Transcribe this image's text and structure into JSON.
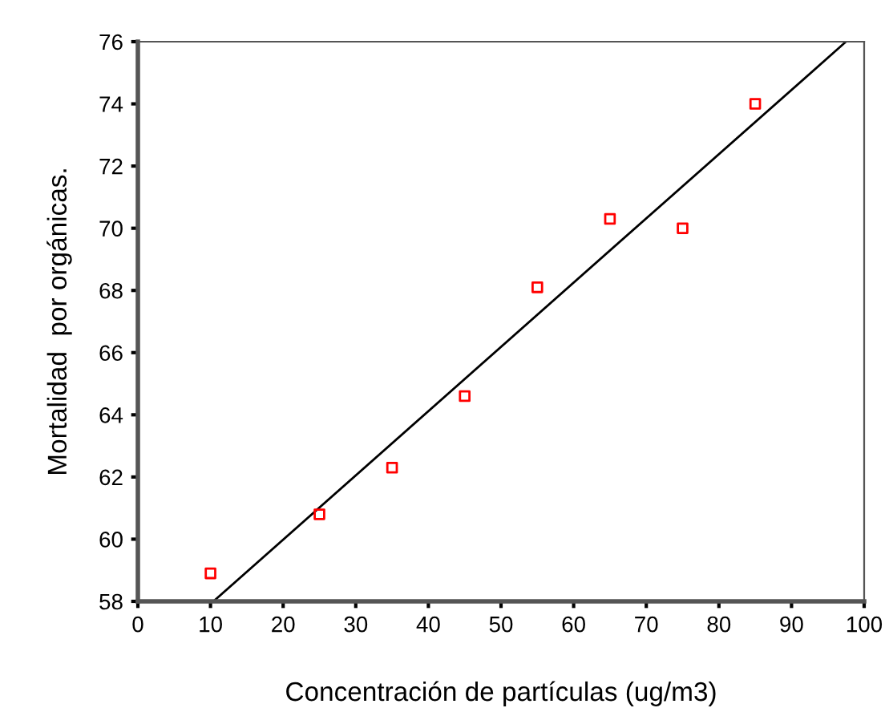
{
  "chart_data": {
    "type": "scatter",
    "xlabel": "Concentración de partículas (ug/m3)",
    "ylabel": "Mortalidad  por orgánicas.",
    "series": [
      {
        "color": "#ff0000",
        "marker": "square",
        "x": [
          10,
          25,
          35,
          45,
          55,
          65,
          75,
          85
        ],
        "values": [
          58.9,
          60.8,
          62.3,
          64.6,
          68.1,
          70.3,
          70.0,
          74.0
        ]
      },
      {
        "type": "line",
        "color": "#000000",
        "marker": "none",
        "x": [
          10.4,
          97.5
        ],
        "values": [
          58,
          76
        ]
      }
    ],
    "xlim": [
      0,
      100
    ],
    "xticks": [
      0,
      10,
      20,
      30,
      40,
      50,
      60,
      70,
      80,
      90,
      100
    ],
    "ylim": [
      58,
      76
    ],
    "yticks": [
      58,
      60,
      62,
      64,
      66,
      68,
      70,
      72,
      74,
      76
    ],
    "grid": false,
    "legend": false
  }
}
